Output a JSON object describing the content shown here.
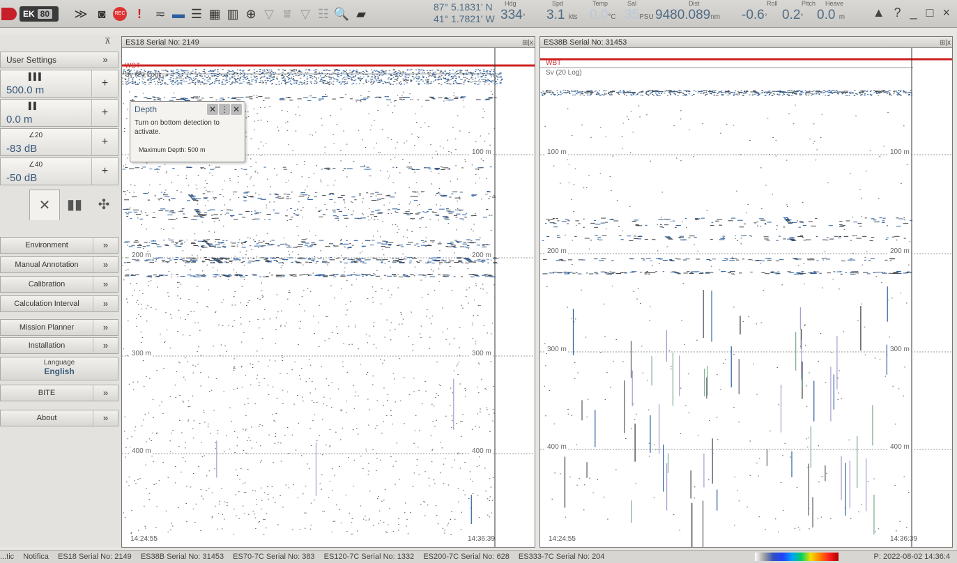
{
  "app": {
    "logo": "",
    "brand": "EK",
    "brand_version": "80"
  },
  "toolbar": {
    "icons": [
      "chevrons-down-icon",
      "camera-icon",
      "record-icon",
      "alarm-icon",
      "palette-icon",
      "layers-icon",
      "echogram-icon",
      "histogram-icon",
      "target-icon",
      "filter-icon",
      "threshold-icon",
      "layer-filter-icon",
      "grid-icon",
      "zoom-icon",
      "export-icon"
    ],
    "record_label": "REC"
  },
  "navigation": {
    "lat": "87° 5.1831' N",
    "lon": "41° 1.7821' W"
  },
  "readouts": [
    {
      "label": "Hdg",
      "value": "334",
      "unit": "°",
      "dim": false
    },
    {
      "label": "Spd",
      "value": "3.1",
      "unit": "kts",
      "dim": false
    },
    {
      "label": "Temp",
      "value": "0.0",
      "unit": "°C",
      "dim": true
    },
    {
      "label": "Sal",
      "value": "35",
      "unit": "PSU",
      "dim": true
    },
    {
      "label": "Dist",
      "value": "9480.089",
      "unit": "nm",
      "dim": false
    },
    {
      "label": "Roll",
      "value": "-0.6",
      "unit": "°",
      "dim": false
    },
    {
      "label": "Pitch",
      "value": "0.2",
      "unit": "°",
      "dim": false
    },
    {
      "label": "Heave",
      "value": "0.0",
      "unit": "m",
      "dim": false
    }
  ],
  "window_controls": {
    "alert": "▲",
    "help": "?",
    "minimize": "_",
    "maximize": "□",
    "close": "×"
  },
  "sidebar": {
    "collapse_icon": "pin-icon",
    "user_settings": {
      "label": "User Settings",
      "chevron": "»"
    },
    "settings": [
      {
        "icon": "range-icon",
        "icon_text": "▌▌▌",
        "value": "500.0 m"
      },
      {
        "icon": "start-range-icon",
        "icon_text": "▌▌",
        "value": "0.0 m"
      },
      {
        "icon": "gain-20-icon",
        "icon_text": "∠20",
        "value": "-83 dB"
      },
      {
        "icon": "gain-40-icon",
        "icon_text": "∠40",
        "value": "-50 dB"
      }
    ],
    "tabs": [
      "",
      "✕",
      "▮▮",
      "✣"
    ],
    "menu": [
      {
        "label": "Environment",
        "chevron": "»"
      },
      {
        "label": "Manual Annotation",
        "chevron": "»"
      },
      {
        "label": "Calibration",
        "chevron": "»"
      },
      {
        "label": "Calculation Interval",
        "chevron": "»"
      },
      {
        "label": "Mission Planner",
        "chevron": "»"
      },
      {
        "label": "Installation",
        "chevron": "»"
      }
    ],
    "language": {
      "label": "Language",
      "value": "English"
    },
    "menu2": [
      {
        "label": "BITE",
        "chevron": "»"
      },
      {
        "label": "About",
        "chevron": "»"
      }
    ]
  },
  "panels": [
    {
      "title": "ES18 Serial No: 2149",
      "controls": "⊞|x",
      "top_labels": [
        "WBT",
        "Sv (20 Log)"
      ],
      "depth_labels": [
        "100 m",
        "200 m",
        "300 m",
        "400 m"
      ],
      "time_start": "14:24:55",
      "time_end": "14:36:39"
    },
    {
      "title": "ES38B Serial No: 31453",
      "controls": "⊞|x",
      "top_labels": [
        "WBT",
        "Sv (20 Log)"
      ],
      "depth_labels": [
        "100 m",
        "200 m",
        "300 m",
        "400 m"
      ],
      "time_start": "14:24:55",
      "time_end": "14:36:39"
    }
  ],
  "depth_popup": {
    "title": "Depth",
    "buttons": [
      "✕",
      "⋮",
      "✕"
    ],
    "message": "Turn on bottom detection to activate.",
    "max_depth": "Maximum Depth:  500 m"
  },
  "statusbar": {
    "items": [
      "...tic",
      "Notifica",
      "ES18 Serial No: 2149",
      "ES38B Serial No: 31453",
      "ES70-7C Serial No: 383",
      "ES120-7C Serial No: 1332",
      "ES200-7C Serial No: 628",
      "ES333-7C Serial No: 204"
    ],
    "timestamp": "P: 2022-08-02  14:36:4"
  },
  "colors": {
    "accent": "#4f6c86",
    "wbt_line": "#cc2020",
    "echo_blue": "#2a5fa0"
  }
}
